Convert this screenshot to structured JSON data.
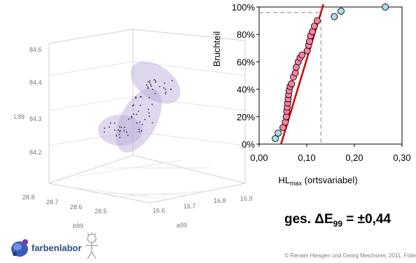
{
  "plot3d": {
    "vertical_ticks": [
      "84.6",
      "84.4",
      "84.3",
      "84.2"
    ],
    "vertical_label": "L99",
    "left_axis_ticks": [
      "28.8",
      "28.7",
      "28.6",
      "28.5"
    ],
    "left_axis_label": "b99",
    "right_axis_ticks": [
      "16.6",
      "16.7",
      "16.8",
      "16.9"
    ],
    "right_axis_label": "a99",
    "ellipse_color": "#b9a6d8",
    "point_color": "#333333"
  },
  "chart_data": {
    "type": "scatter",
    "xlabel": "HL",
    "xlabel_sub": "max",
    "xlabel_suffix": " (ortsvariabel)",
    "ylabel": "Bruchteil",
    "xlim": [
      0,
      0.3
    ],
    "ylim": [
      0,
      1
    ],
    "x_ticks": [
      "0,00",
      "0,10",
      "0,20",
      "0,30"
    ],
    "x_tick_values": [
      0,
      0.1,
      0.2,
      0.3
    ],
    "y_ticks": [
      "0%",
      "20%",
      "40%",
      "60%",
      "80%",
      "100%"
    ],
    "y_tick_values": [
      0,
      0.2,
      0.4,
      0.6,
      0.8,
      1.0
    ],
    "series": [
      {
        "color": "#ff7f9f",
        "points": [
          [
            0.05,
            0.12
          ],
          [
            0.055,
            0.16
          ],
          [
            0.057,
            0.2
          ],
          [
            0.058,
            0.24
          ],
          [
            0.059,
            0.27
          ],
          [
            0.06,
            0.3
          ],
          [
            0.061,
            0.33
          ],
          [
            0.062,
            0.36
          ],
          [
            0.063,
            0.39
          ],
          [
            0.065,
            0.42
          ],
          [
            0.068,
            0.44
          ],
          [
            0.072,
            0.49
          ],
          [
            0.076,
            0.52
          ],
          [
            0.078,
            0.56
          ],
          [
            0.082,
            0.6
          ],
          [
            0.086,
            0.63
          ],
          [
            0.09,
            0.65
          ],
          [
            0.101,
            0.68
          ],
          [
            0.104,
            0.72
          ],
          [
            0.106,
            0.75
          ],
          [
            0.108,
            0.79
          ],
          [
            0.112,
            0.82
          ],
          [
            0.116,
            0.86
          ],
          [
            0.122,
            0.9
          ]
        ]
      },
      {
        "color": "#a9dcf0",
        "points": [
          [
            0.034,
            0.04
          ],
          [
            0.04,
            0.08
          ],
          [
            0.158,
            0.93
          ],
          [
            0.172,
            0.97
          ],
          [
            0.265,
            1.0
          ]
        ]
      }
    ],
    "fit_line": {
      "color": "#cc0000",
      "points": [
        [
          0.046,
          0.0
        ],
        [
          0.135,
          1.02
        ]
      ]
    },
    "reference": {
      "x": 0.13,
      "y": 0.96,
      "color": "#999999"
    }
  },
  "summary": {
    "prefix": "ges. ΔE",
    "sub": "99",
    "suffix": " = ±0,44"
  },
  "logo": {
    "text": "farbenlabor"
  },
  "copyright": "© Renate Hiesgen und Georg Meichsner, 2011, Folie"
}
